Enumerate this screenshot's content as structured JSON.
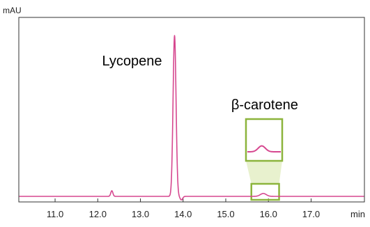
{
  "chart_data": {
    "type": "line",
    "ylabel": "mAU",
    "xlabel": "min",
    "xlim": [
      10.15,
      18.25
    ],
    "x_ticks": [
      11.0,
      12.0,
      13.0,
      14.0,
      15.0,
      16.0,
      17.0
    ],
    "x_tick_labels": [
      "11.0",
      "12.0",
      "13.0",
      "14.0",
      "15.0",
      "16.0",
      "17.0"
    ],
    "grid": false,
    "colors": {
      "trace": "#d6478f",
      "zoom_box": "#8cb43c",
      "zoom_fill": "#e4efc6",
      "frame": "#333333"
    },
    "series": [
      {
        "peaks": [
          {
            "x": 12.33,
            "height": 0.035,
            "width": 0.025
          },
          {
            "x": 13.8,
            "height": 1.0,
            "width": 0.035
          },
          {
            "x": 13.96,
            "height": -0.022,
            "width": 0.03
          },
          {
            "x": 15.88,
            "height": 0.018,
            "width": 0.07
          }
        ],
        "baseline": 0.0
      }
    ],
    "annotations": [
      {
        "text": "Lycopene",
        "x": 13.8
      },
      {
        "text": "β-carotene",
        "x": 15.88
      }
    ],
    "inset": {
      "x_range": [
        15.6,
        16.25
      ],
      "zoom_factor": 12
    }
  }
}
